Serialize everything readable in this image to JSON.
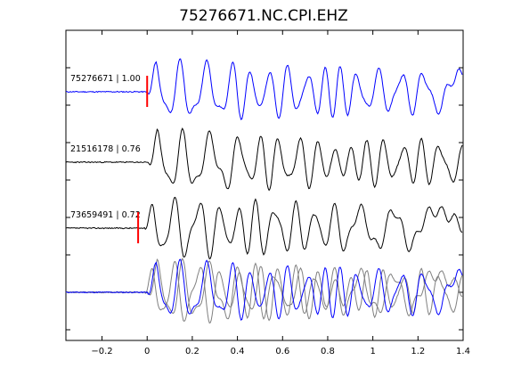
{
  "chart_data": {
    "type": "line",
    "title": "75276671.NC.CPI.EHZ",
    "xlabel": "",
    "ylabel": "",
    "xlim": [
      -0.36,
      1.4
    ],
    "xticks": [
      -0.2,
      0,
      0.2,
      0.4,
      0.6,
      0.8,
      1,
      1.2,
      1.4
    ],
    "xtick_labels": [
      "−0.2",
      "0",
      "0.2",
      "0.4",
      "0.6",
      "0.8",
      "1",
      "1.2",
      "1.4"
    ],
    "grid": false,
    "legend": "none",
    "traces": [
      {
        "label": "75276671 | 1.00",
        "color": "#0000ff",
        "pick_time": 0.0
      },
      {
        "label": "21516178 | 0.76",
        "color": "#000000",
        "pick_time": null
      },
      {
        "label": "73659491 | 0.72",
        "color": "#000000",
        "pick_time": -0.04
      }
    ],
    "overlay_colors": [
      "#808080",
      "#808080",
      "#0000ff"
    ],
    "pick_color": "#ff0000"
  }
}
